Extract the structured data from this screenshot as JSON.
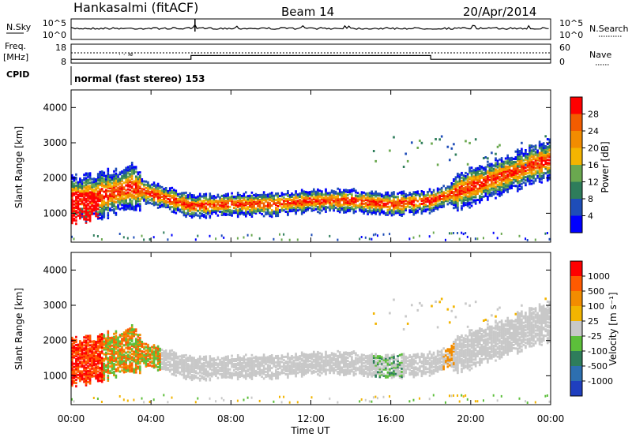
{
  "header": {
    "station": "Hankasalmi (fitACF)",
    "beam": "Beam 14",
    "date": "20/Apr/2014"
  },
  "noise_panel": {
    "left_label": "N.Sky",
    "right_label": "N.Search",
    "left_ticks": [
      "10^5",
      "10^0"
    ],
    "right_ticks": [
      "10^5",
      "10^0"
    ]
  },
  "freq_panel": {
    "left_label_line1": "Freq.",
    "left_label_line2": "[MHz]",
    "left_ticks": [
      "18",
      "8"
    ],
    "right_label": "Nave",
    "right_ticks": [
      "60",
      "0"
    ]
  },
  "cpid": {
    "label": "CPID",
    "value": "normal (fast stereo) 153"
  },
  "power_panel": {
    "ylabel": "Slant Range [km]",
    "yticks": [
      "4000",
      "3000",
      "2000",
      "1000"
    ],
    "colorbar_label": "Power [dB]",
    "colorbar_ticks": [
      "28",
      "24",
      "20",
      "16",
      "12",
      "8",
      "4"
    ],
    "colors": [
      "#0000ff",
      "#1e4db8",
      "#2e7d5b",
      "#6aa84f",
      "#f4b400",
      "#f28c00",
      "#f25c00",
      "#ff0000"
    ]
  },
  "velocity_panel": {
    "ylabel": "Slant Range [km]",
    "yticks": [
      "4000",
      "3000",
      "2000",
      "1000"
    ],
    "colorbar_label": "Velocity [m s⁻¹]",
    "colorbar_ticks": [
      "1000",
      "500",
      "100",
      "25",
      "-25",
      "-100",
      "-500",
      "-1000"
    ],
    "colors": [
      "#1f3fbf",
      "#2d6fb0",
      "#2e7d5b",
      "#5cbf3a",
      "#c8c8c8",
      "#f2b400",
      "#f28c00",
      "#ff5a00",
      "#ff0000"
    ]
  },
  "x_axis": {
    "label": "Time UT",
    "ticks": [
      "00:00",
      "04:00",
      "08:00",
      "12:00",
      "16:00",
      "20:00",
      "00:00"
    ]
  },
  "chart_data": {
    "type": "heatmap",
    "title": "Hankasalmi (fitACF) Beam 14 20/Apr/2014",
    "xlabel": "Time UT",
    "ylabel": "Slant Range [km]",
    "xlim": [
      "00:00",
      "24:00"
    ],
    "ylim": [
      180,
      4500
    ],
    "power_range_db": [
      0,
      30
    ],
    "velocity_range_ms": [
      -1000,
      1000
    ],
    "scatter_band_center_km": [
      {
        "hour": 0.0,
        "km": 1400
      },
      {
        "hour": 1.0,
        "km": 1450
      },
      {
        "hour": 2.5,
        "km": 1650
      },
      {
        "hour": 3.0,
        "km": 1750
      },
      {
        "hour": 4.0,
        "km": 1550
      },
      {
        "hour": 6.0,
        "km": 1200
      },
      {
        "hour": 8.0,
        "km": 1250
      },
      {
        "hour": 10.0,
        "km": 1250
      },
      {
        "hour": 12.0,
        "km": 1350
      },
      {
        "hour": 14.0,
        "km": 1350
      },
      {
        "hour": 16.0,
        "km": 1250
      },
      {
        "hour": 18.0,
        "km": 1350
      },
      {
        "hour": 20.0,
        "km": 1750
      },
      {
        "hour": 22.0,
        "km": 2150
      },
      {
        "hour": 24.0,
        "km": 2550
      }
    ],
    "transmit_freq_mhz": [
      {
        "hour": 0.0,
        "mhz": 10
      },
      {
        "hour": 6.0,
        "mhz": 12
      },
      {
        "hour": 18.0,
        "mhz": 10
      },
      {
        "hour": 24.0,
        "mhz": 10
      }
    ]
  }
}
